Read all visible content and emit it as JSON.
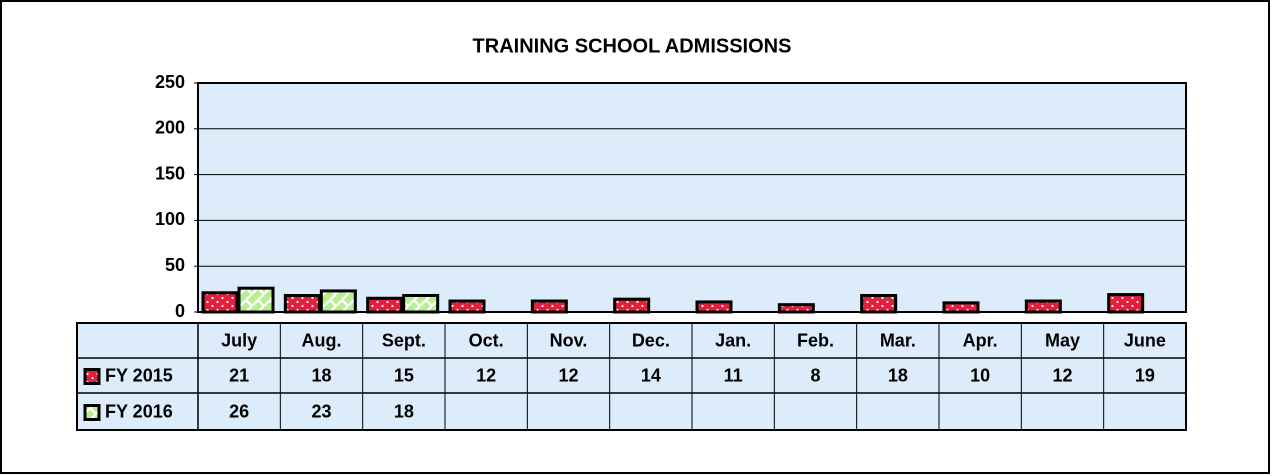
{
  "chart_data": {
    "type": "bar",
    "title": "TRAINING SCHOOL ADMISSIONS",
    "categories": [
      "July",
      "Aug.",
      "Sept.",
      "Oct.",
      "Nov.",
      "Dec.",
      "Jan.",
      "Feb.",
      "Mar.",
      "Apr.",
      "May",
      "June"
    ],
    "series": [
      {
        "name": "FY 2015",
        "color": "#e0203c",
        "values": [
          21,
          18,
          15,
          12,
          12,
          14,
          11,
          8,
          18,
          10,
          12,
          19
        ]
      },
      {
        "name": "FY 2016",
        "color": "#b4f08c",
        "values": [
          26,
          23,
          18,
          null,
          null,
          null,
          null,
          null,
          null,
          null,
          null,
          null
        ]
      }
    ],
    "ylim": [
      0,
      250
    ],
    "yticks": [
      0,
      50,
      100,
      150,
      200,
      250
    ],
    "grid": true
  }
}
